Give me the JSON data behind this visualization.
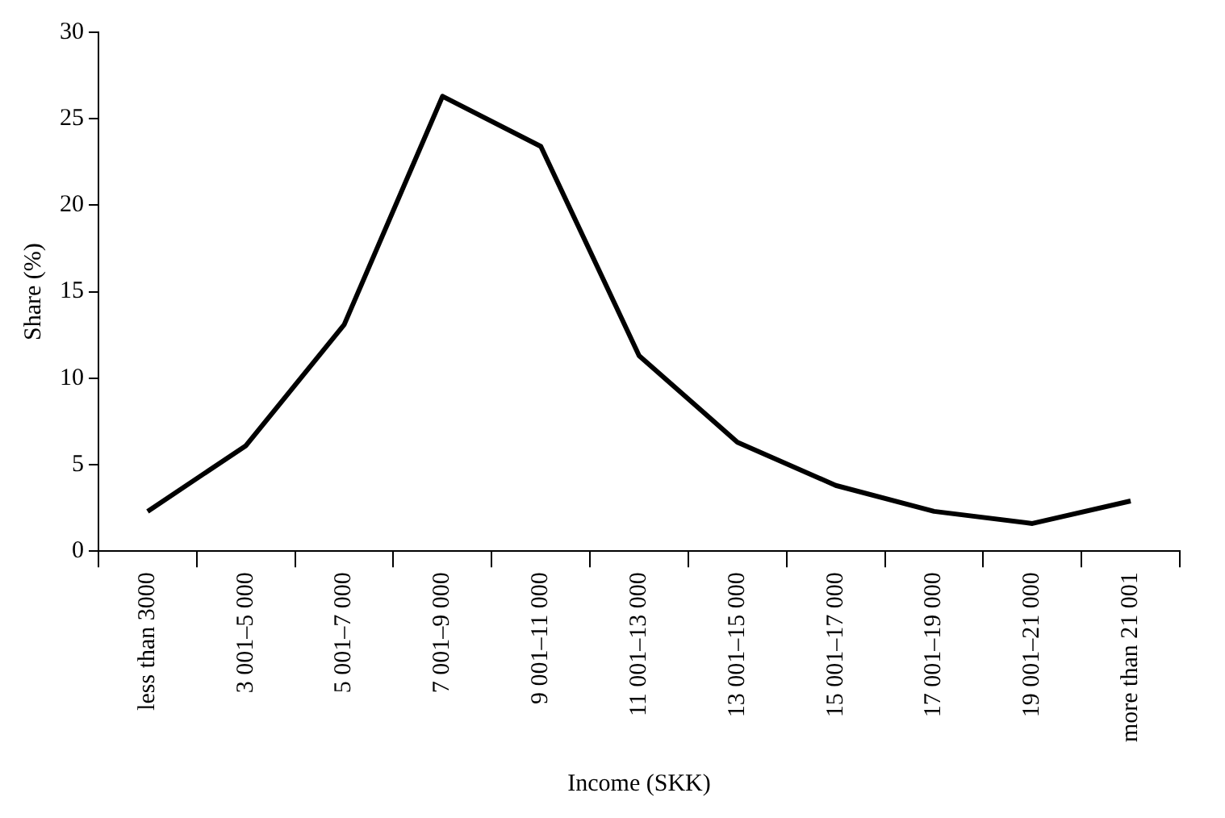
{
  "chart_data": {
    "type": "line",
    "xlabel": "Income (SKK)",
    "ylabel": "Share (%)",
    "categories": [
      "less than 3000",
      "3 001–5 000",
      "5 001–7 000",
      "7 001–9 000",
      "9 001–11 000",
      "11 001–13 000",
      "13 001–15 000",
      "15 001–17 000",
      "17 001–19 000",
      "19 001–21 000",
      "more than 21 001"
    ],
    "series": [
      {
        "color": "#000000",
        "values": [
          2.3,
          6.1,
          13.1,
          26.3,
          23.4,
          11.3,
          6.3,
          3.8,
          2.3,
          1.6,
          2.9
        ]
      }
    ],
    "ylim": [
      0,
      30
    ],
    "yticks": [
      0,
      5,
      10,
      15,
      20,
      25,
      30
    ],
    "grid": false,
    "legend": false,
    "marker": "none",
    "line_style": "solid"
  }
}
